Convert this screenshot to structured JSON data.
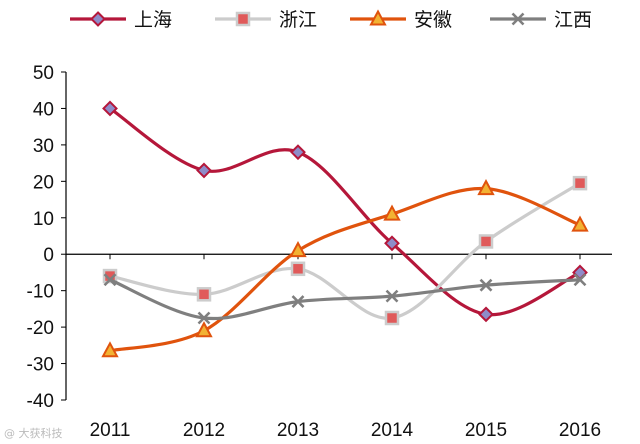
{
  "chart_data": {
    "type": "line",
    "categories": [
      "2011",
      "2012",
      "2013",
      "2014",
      "2015",
      "2016"
    ],
    "ylim": [
      -40,
      50
    ],
    "yticks": [
      50,
      40,
      30,
      20,
      10,
      0,
      -10,
      -20,
      -30,
      -40
    ],
    "smooth": true,
    "grid": false,
    "legend_position": "top",
    "series": [
      {
        "name": "上海",
        "marker": "diamond",
        "color": "#B5173A",
        "marker_fill": "#8E8CC9",
        "values": [
          40,
          23,
          28,
          3,
          -16.5,
          -5
        ]
      },
      {
        "name": "浙江",
        "marker": "square",
        "color": "#CCCCCC",
        "marker_fill": "#E05A5A",
        "values": [
          -6,
          -11,
          -4,
          -17.5,
          3.5,
          19.5
        ]
      },
      {
        "name": "安徽",
        "marker": "triangle",
        "color": "#E0530D",
        "marker_fill": "#F2B233",
        "values": [
          -26.5,
          -21,
          1,
          11,
          18,
          8
        ]
      },
      {
        "name": "江西",
        "marker": "x",
        "color": "#7F7F7F",
        "marker_fill": "#7F7F7F",
        "values": [
          -7,
          -17.5,
          -13,
          -11.5,
          -8.5,
          -7
        ]
      }
    ]
  },
  "watermark": "@ 大获科技"
}
